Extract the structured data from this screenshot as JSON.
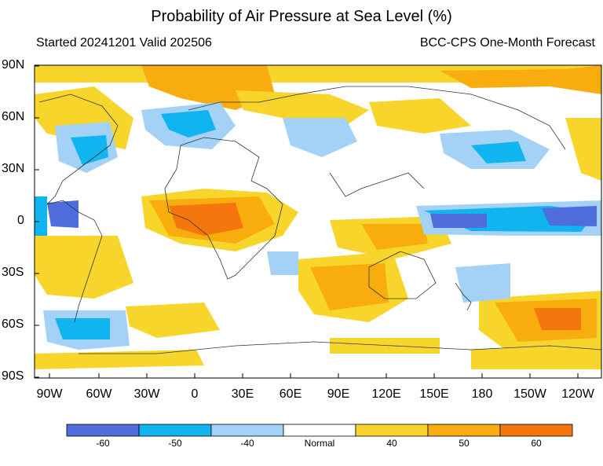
{
  "title": "Probability of Air Pressure at Sea Level (%)",
  "subtitle_left": "Started 20241201  Valid 202506",
  "subtitle_right": "BCC-CPS One-Month Forecast",
  "lat_labels": [
    "90N",
    "60N",
    "30N",
    "0",
    "30S",
    "60S",
    "90S"
  ],
  "lon_labels": [
    "90W",
    "60W",
    "30W",
    "0",
    "30E",
    "60E",
    "90E",
    "120E",
    "150E",
    "180",
    "150W",
    "120W"
  ],
  "colorbar": {
    "labels": [
      "-60",
      "-50",
      "-40",
      "Normal",
      "40",
      "50",
      "60"
    ],
    "colors": [
      "#4f6ddd",
      "#10b4ee",
      "#a3d2f6",
      "#ffffff",
      "#f8d52a",
      "#f9ac0d",
      "#f6760e"
    ]
  },
  "legend_colors": {
    "below_60": "#4f6ddd",
    "below_50": "#10b4ee",
    "below_40": "#a3d2f6",
    "normal": "#ffffff",
    "above_40": "#f8d52a",
    "above_50": "#f9ac0d",
    "above_60": "#f6760e"
  }
}
